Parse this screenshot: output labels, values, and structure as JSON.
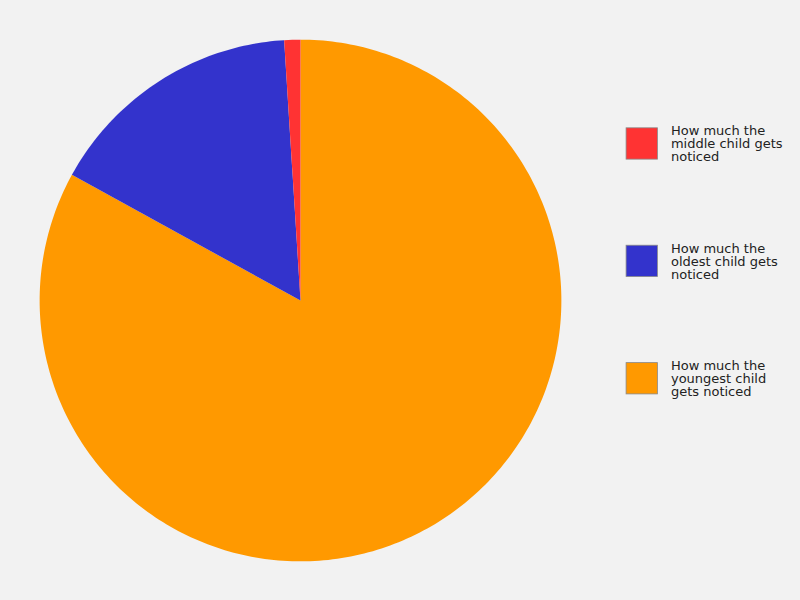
{
  "chart_data": {
    "type": "pie",
    "categories": [
      "How much the youngest child gets noticed",
      "How much the oldest child gets noticed",
      "How much the middle child gets noticed"
    ],
    "values": [
      83,
      16,
      1
    ],
    "colors": [
      "#FF9900",
      "#3333CC",
      "#FF3333"
    ],
    "legend": "right"
  }
}
